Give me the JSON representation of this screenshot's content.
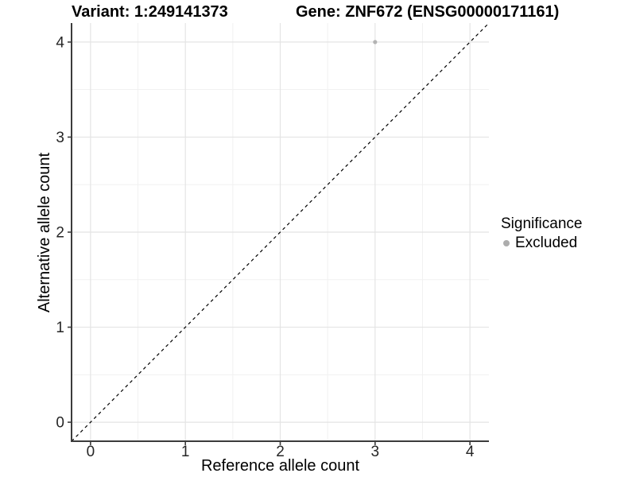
{
  "title": {
    "variant": "Variant: 1:249141373",
    "gene": "Gene: ZNF672 (ENSG00000171161)"
  },
  "chart_data": {
    "type": "scatter",
    "xlabel": "Reference allele count",
    "ylabel": "Alternative allele count",
    "xlim": [
      -0.2,
      4.2
    ],
    "ylim": [
      -0.2,
      4.2
    ],
    "x_ticks": [
      0,
      1,
      2,
      3,
      4
    ],
    "y_ticks": [
      0,
      1,
      2,
      3,
      4
    ],
    "x_minor": [
      0.5,
      1.5,
      2.5,
      3.5
    ],
    "y_minor": [
      0.5,
      1.5,
      2.5,
      3.5
    ],
    "grid": "major and minor gridlines on white panel",
    "series": [
      {
        "name": "Excluded",
        "color": "#b3b3b3",
        "points": [
          {
            "x": 3,
            "y": 4
          }
        ]
      }
    ],
    "reference_line": {
      "name": "identity",
      "style": "dashed",
      "color": "#000000",
      "from": [
        -0.2,
        -0.2
      ],
      "to": [
        4.2,
        4.2
      ]
    },
    "legend": {
      "title": "Significance",
      "position": "right",
      "entries": [
        {
          "label": "Excluded",
          "color": "#adadad"
        }
      ]
    },
    "colors": {
      "grid_major": "#e4e4e4",
      "grid_minor": "#f1f1f1",
      "axis_line": "#3c3c3c",
      "tick_text": "#262626",
      "panel_background": "#ffffff"
    }
  }
}
